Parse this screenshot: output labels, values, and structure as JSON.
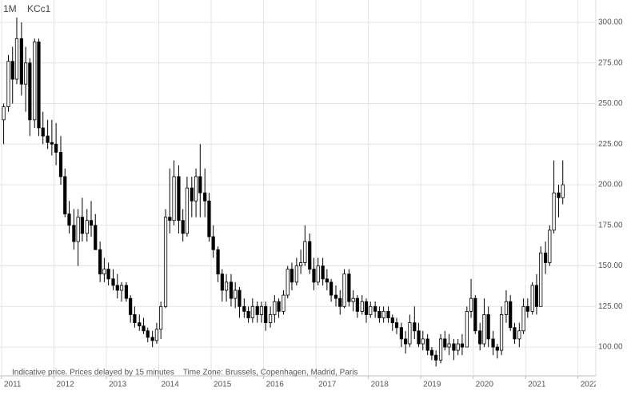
{
  "chart_data": {
    "type": "candlestick",
    "interval": "1M",
    "symbol": "KCc1",
    "note": "Indicative price. Prices delayed by 15 minutes    Time Zone: Brussels, Copenhagen, Madrid, Paris",
    "xlim": [
      2010.97,
      2022.34
    ],
    "xticks": [
      2011,
      2012,
      2013,
      2014,
      2015,
      2016,
      2017,
      2018,
      2019,
      2020,
      2021,
      2022
    ],
    "ylim": [
      82.3,
      313.8
    ],
    "yticks": [
      {
        "value": 100,
        "label": "100.00"
      },
      {
        "value": 125,
        "label": "125.00"
      },
      {
        "value": 150,
        "label": "150.00"
      },
      {
        "value": 175,
        "label": "175.00"
      },
      {
        "value": 200,
        "label": "200.00"
      },
      {
        "value": 225,
        "label": "225.00"
      },
      {
        "value": 250,
        "label": "250.00"
      },
      {
        "value": 275,
        "label": "275.00"
      },
      {
        "value": 300,
        "label": "300.00"
      }
    ],
    "grid": true,
    "up_color": "#ffffff",
    "down_color": "#000000",
    "x": [
      2011.04,
      2011.13,
      2011.21,
      2011.29,
      2011.38,
      2011.46,
      2011.54,
      2011.63,
      2011.71,
      2011.79,
      2011.88,
      2011.96,
      2012.04,
      2012.13,
      2012.21,
      2012.29,
      2012.38,
      2012.46,
      2012.54,
      2012.63,
      2012.71,
      2012.79,
      2012.88,
      2012.96,
      2013.04,
      2013.13,
      2013.21,
      2013.29,
      2013.38,
      2013.46,
      2013.54,
      2013.63,
      2013.71,
      2013.79,
      2013.88,
      2013.96,
      2014.04,
      2014.13,
      2014.21,
      2014.29,
      2014.38,
      2014.46,
      2014.54,
      2014.63,
      2014.71,
      2014.79,
      2014.88,
      2014.96,
      2015.04,
      2015.13,
      2015.21,
      2015.29,
      2015.38,
      2015.46,
      2015.54,
      2015.63,
      2015.71,
      2015.79,
      2015.88,
      2015.96,
      2016.04,
      2016.13,
      2016.21,
      2016.29,
      2016.38,
      2016.46,
      2016.54,
      2016.63,
      2016.71,
      2016.79,
      2016.88,
      2016.96,
      2017.04,
      2017.13,
      2017.21,
      2017.29,
      2017.38,
      2017.46,
      2017.54,
      2017.63,
      2017.71,
      2017.79,
      2017.88,
      2017.96,
      2018.04,
      2018.13,
      2018.21,
      2018.29,
      2018.38,
      2018.46,
      2018.54,
      2018.63,
      2018.71,
      2018.79,
      2018.88,
      2018.96,
      2019.04,
      2019.13,
      2019.21,
      2019.29,
      2019.38,
      2019.46,
      2019.54,
      2019.63,
      2019.71,
      2019.79,
      2019.88,
      2019.96,
      2020.04,
      2020.13,
      2020.21,
      2020.29,
      2020.38,
      2020.46,
      2020.54,
      2020.63,
      2020.71,
      2020.79,
      2020.88,
      2020.96,
      2021.04,
      2021.13,
      2021.21,
      2021.29,
      2021.38,
      2021.46,
      2021.54,
      2021.63,
      2021.71
    ],
    "open": [
      240,
      248,
      276,
      265,
      290,
      262,
      275,
      240,
      288,
      235,
      230,
      226,
      225,
      220,
      205,
      182,
      175,
      165,
      180,
      170,
      178,
      175,
      160,
      145,
      148,
      142,
      138,
      135,
      138,
      130,
      120,
      115,
      113,
      110,
      106,
      104,
      111,
      125,
      180,
      178,
      205,
      178,
      170,
      198,
      190,
      205,
      195,
      190,
      168,
      160,
      145,
      135,
      140,
      130,
      135,
      125,
      122,
      118,
      125,
      120,
      125,
      115,
      120,
      128,
      122,
      132,
      148,
      140,
      150,
      152,
      165,
      148,
      140,
      150,
      142,
      140,
      132,
      130,
      125,
      145,
      128,
      130,
      122,
      128,
      120,
      125,
      122,
      118,
      122,
      118,
      115,
      112,
      105,
      102,
      115,
      110,
      102,
      105,
      98,
      95,
      92,
      105,
      100,
      102,
      98,
      102,
      100,
      122,
      130,
      110,
      102,
      120,
      105,
      100,
      98,
      120,
      128,
      112,
      105,
      110,
      125,
      122,
      138,
      125,
      158,
      152,
      172,
      195,
      192
    ],
    "high": [
      250,
      280,
      285,
      303,
      300,
      285,
      278,
      290,
      290,
      245,
      240,
      240,
      238,
      230,
      210,
      190,
      185,
      185,
      192,
      185,
      190,
      182,
      165,
      155,
      152,
      148,
      145,
      140,
      140,
      132,
      125,
      120,
      118,
      112,
      110,
      115,
      128,
      185,
      210,
      215,
      212,
      185,
      205,
      205,
      210,
      225,
      210,
      195,
      175,
      162,
      148,
      145,
      145,
      140,
      137,
      130,
      125,
      130,
      128,
      128,
      128,
      125,
      132,
      130,
      135,
      150,
      152,
      155,
      160,
      175,
      170,
      155,
      155,
      155,
      148,
      142,
      138,
      135,
      148,
      148,
      135,
      132,
      132,
      130,
      128,
      128,
      125,
      125,
      125,
      120,
      118,
      115,
      110,
      120,
      125,
      115,
      110,
      108,
      100,
      98,
      108,
      110,
      108,
      105,
      105,
      108,
      125,
      142,
      132,
      115,
      130,
      125,
      110,
      102,
      125,
      135,
      132,
      115,
      115,
      130,
      130,
      140,
      145,
      162,
      165,
      175,
      215,
      200,
      215
    ],
    "low": [
      225,
      245,
      250,
      262,
      255,
      245,
      230,
      235,
      230,
      225,
      222,
      218,
      212,
      200,
      180,
      170,
      160,
      150,
      165,
      165,
      168,
      160,
      140,
      140,
      138,
      135,
      130,
      128,
      128,
      115,
      112,
      110,
      108,
      103,
      100,
      102,
      105,
      124,
      170,
      175,
      170,
      165,
      168,
      180,
      180,
      180,
      180,
      165,
      155,
      140,
      128,
      128,
      125,
      124,
      118,
      118,
      115,
      115,
      115,
      115,
      110,
      112,
      115,
      118,
      120,
      130,
      135,
      138,
      145,
      150,
      145,
      135,
      138,
      138,
      135,
      128,
      125,
      120,
      124,
      125,
      122,
      118,
      120,
      115,
      118,
      118,
      115,
      115,
      115,
      110,
      108,
      100,
      96,
      100,
      105,
      100,
      98,
      95,
      92,
      88,
      90,
      98,
      95,
      92,
      95,
      95,
      100,
      118,
      108,
      98,
      100,
      100,
      95,
      93,
      95,
      115,
      110,
      102,
      100,
      108,
      118,
      120,
      120,
      125,
      145,
      150,
      170,
      180,
      188
    ],
    "close": [
      248,
      276,
      265,
      290,
      262,
      275,
      240,
      288,
      235,
      230,
      226,
      225,
      220,
      205,
      182,
      175,
      165,
      180,
      170,
      178,
      175,
      160,
      145,
      148,
      142,
      138,
      135,
      138,
      130,
      120,
      115,
      113,
      110,
      106,
      104,
      111,
      125,
      180,
      178,
      205,
      178,
      170,
      198,
      190,
      205,
      195,
      190,
      168,
      160,
      145,
      135,
      140,
      130,
      135,
      125,
      122,
      118,
      125,
      120,
      125,
      115,
      120,
      128,
      122,
      132,
      148,
      140,
      150,
      152,
      165,
      148,
      140,
      150,
      142,
      140,
      132,
      130,
      125,
      145,
      128,
      130,
      122,
      128,
      120,
      125,
      122,
      118,
      122,
      118,
      115,
      112,
      105,
      102,
      115,
      110,
      102,
      105,
      98,
      95,
      92,
      105,
      100,
      102,
      98,
      102,
      100,
      122,
      130,
      110,
      102,
      120,
      105,
      100,
      98,
      120,
      128,
      112,
      105,
      110,
      125,
      122,
      138,
      125,
      158,
      152,
      172,
      195,
      192,
      200
    ]
  }
}
